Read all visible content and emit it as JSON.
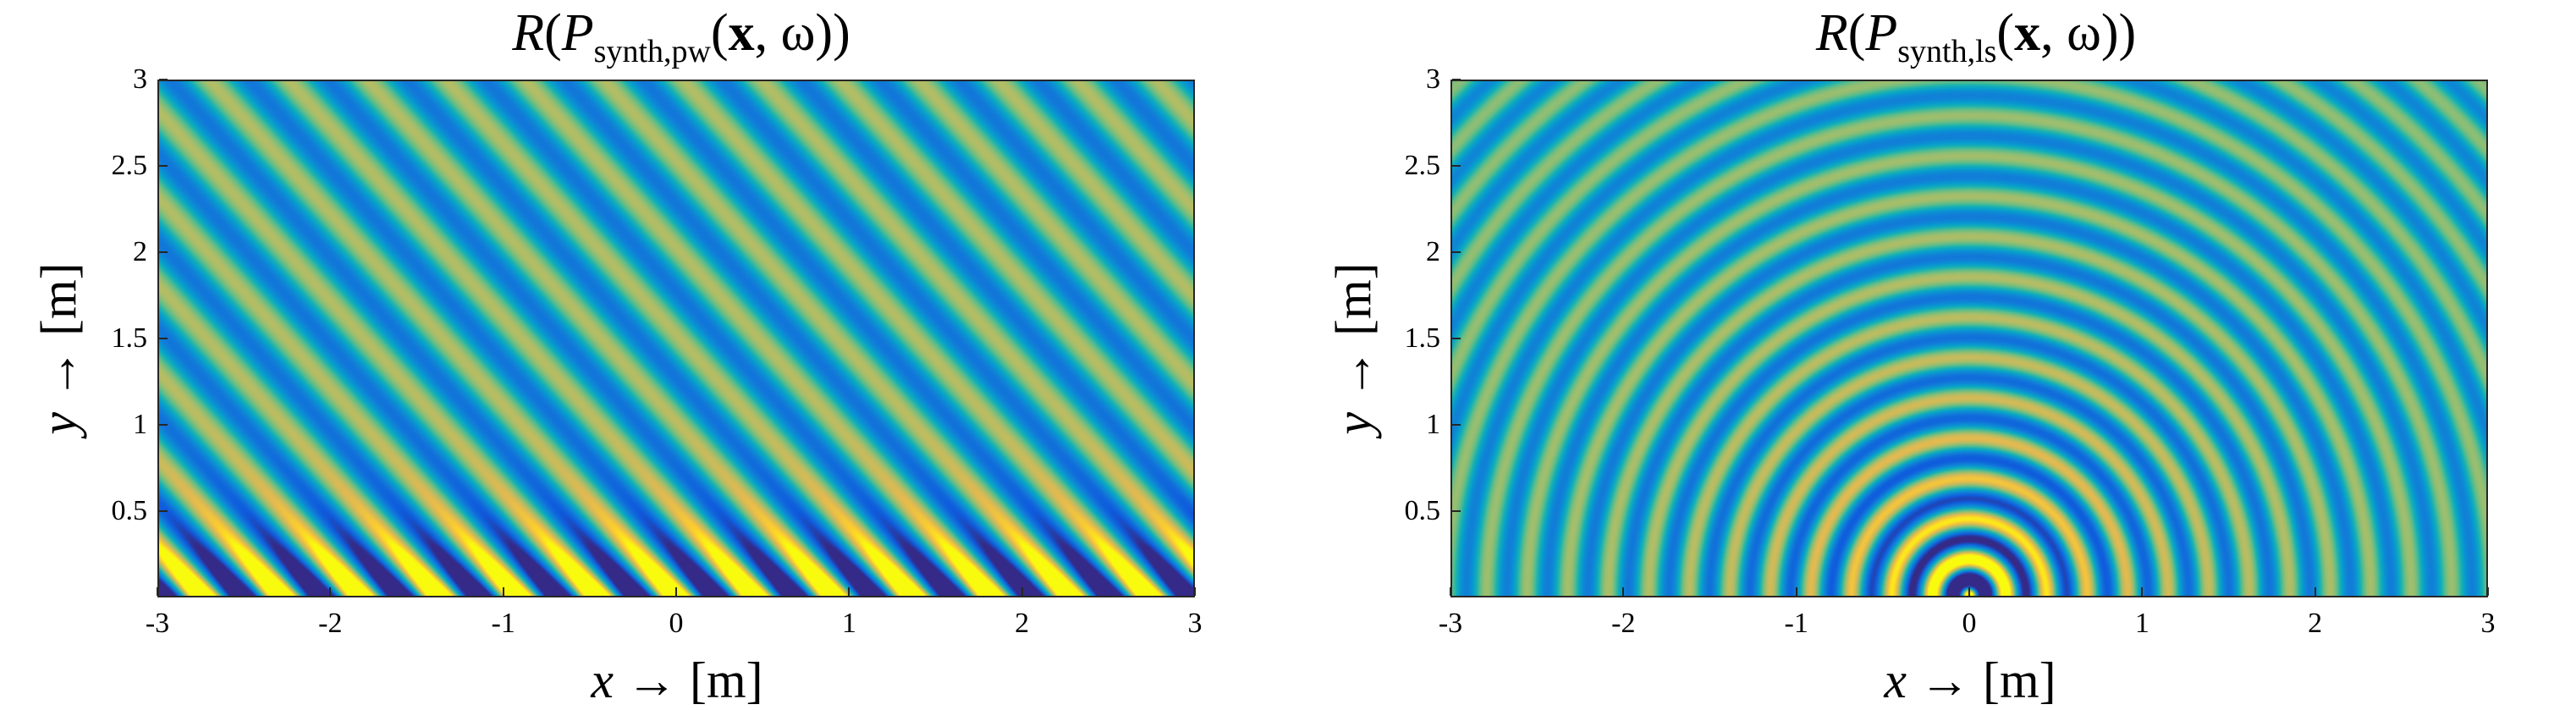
{
  "chart_data": [
    {
      "type": "heatmap",
      "title": {
        "prefix": "R",
        "open": "(",
        "var": "P",
        "subscript": "synth,pw",
        "open2": "(",
        "bold_arg": "x",
        "rest": ", ω))"
      },
      "field": "plane-wave",
      "xlabel": {
        "var": "x",
        "rest": " → [m]"
      },
      "ylabel": {
        "var": "y",
        "rest": " → [m]"
      },
      "xlim": [
        -3,
        3
      ],
      "ylim": [
        0,
        3
      ],
      "x_ticks": [
        "-3",
        "-2",
        "-1",
        "0",
        "1",
        "2",
        "3"
      ],
      "x_tick_values": [
        -3,
        -2,
        -1,
        0,
        1,
        2,
        3
      ],
      "y_ticks": [
        "0.5",
        "1",
        "1.5",
        "2",
        "2.5",
        "3"
      ],
      "y_tick_values": [
        0.5,
        1,
        1.5,
        2,
        2.5,
        3
      ],
      "wavelength": 0.34,
      "propagation_angle_deg": 42,
      "colormap": "parula",
      "clim": [
        -1,
        1
      ]
    },
    {
      "type": "heatmap",
      "title": {
        "prefix": "R",
        "open": "(",
        "var": "P",
        "subscript": "synth,ls",
        "open2": "(",
        "bold_arg": "x",
        "rest": ", ω))"
      },
      "field": "line-source",
      "xlabel": {
        "var": "x",
        "rest": " → [m]"
      },
      "ylabel": {
        "var": "y",
        "rest": " → [m]"
      },
      "xlim": [
        -3,
        3
      ],
      "ylim": [
        0,
        3
      ],
      "x_ticks": [
        "-3",
        "-2",
        "-1",
        "0",
        "1",
        "2",
        "3"
      ],
      "x_tick_values": [
        -3,
        -2,
        -1,
        0,
        1,
        2,
        3
      ],
      "y_ticks": [
        "0.5",
        "1",
        "1.5",
        "2",
        "2.5",
        "3"
      ],
      "y_tick_values": [
        0.5,
        1,
        1.5,
        2,
        2.5,
        3
      ],
      "wavelength": 0.235,
      "source_position": [
        0,
        0
      ],
      "colormap": "parula",
      "clim": [
        -1,
        1
      ]
    }
  ],
  "colors": {
    "dark_blue": "#3d26a8",
    "teal": "#1f9eb0",
    "orange": "#f5b93f",
    "yellow": "#f9fb0e",
    "axis": "#262626"
  }
}
